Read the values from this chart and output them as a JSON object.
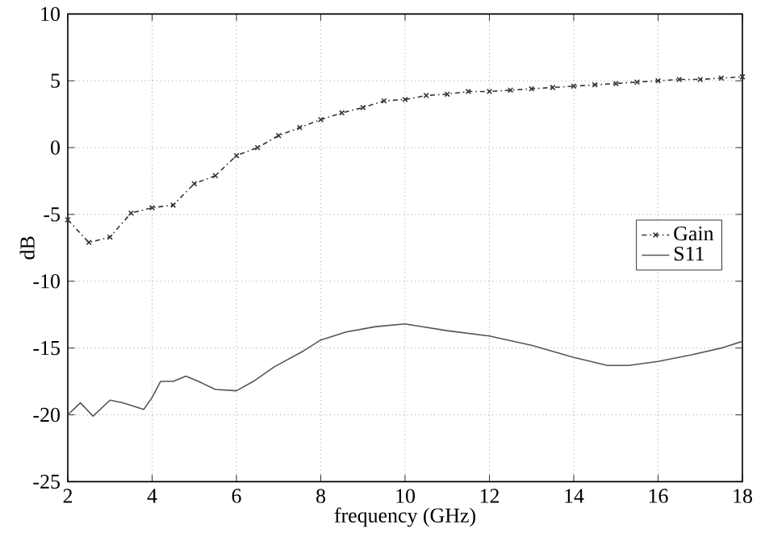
{
  "chart_data": {
    "type": "line",
    "xlabel": "frequency (GHz)",
    "ylabel": "dB",
    "xlim": [
      2,
      18
    ],
    "ylim": [
      -25,
      10
    ],
    "xticks": [
      2,
      4,
      6,
      8,
      10,
      12,
      14,
      16,
      18
    ],
    "yticks": [
      -25,
      -20,
      -15,
      -10,
      -5,
      0,
      5,
      10
    ],
    "grid": true,
    "legend": "right",
    "series": [
      {
        "name": "Gain",
        "color": "#333333",
        "marker": "cross",
        "line_style": "dashdot",
        "x": [
          2,
          2.5,
          3,
          3.5,
          4,
          4.5,
          5,
          5.5,
          6,
          6.5,
          7,
          7.5,
          8,
          8.5,
          9,
          9.5,
          10,
          10.5,
          11,
          11.5,
          12,
          12.5,
          13,
          13.5,
          14,
          14.5,
          15,
          15.5,
          16,
          16.5,
          17,
          17.5,
          18
        ],
        "values": [
          -5.4,
          -7.1,
          -6.7,
          -4.9,
          -4.5,
          -4.3,
          -2.7,
          -2.1,
          -0.6,
          0.0,
          0.9,
          1.5,
          2.1,
          2.6,
          3.0,
          3.5,
          3.6,
          3.9,
          4.0,
          4.2,
          4.2,
          4.3,
          4.4,
          4.5,
          4.6,
          4.7,
          4.8,
          4.9,
          5.0,
          5.1,
          5.1,
          5.2,
          5.3
        ]
      },
      {
        "name": "S11",
        "color": "#555555",
        "marker": "none",
        "line_style": "solid",
        "x": [
          2,
          2.3,
          2.6,
          3,
          3.3,
          3.8,
          4,
          4.2,
          4.5,
          4.8,
          5.1,
          5.5,
          6,
          6.4,
          6.9,
          7.6,
          8,
          8.6,
          9.3,
          10,
          11,
          12,
          13,
          14,
          14.8,
          15.3,
          16,
          16.8,
          17.5,
          18
        ],
        "values": [
          -20,
          -19.1,
          -20.1,
          -18.9,
          -19.1,
          -19.6,
          -18.7,
          -17.5,
          -17.5,
          -17.1,
          -17.5,
          -18.1,
          -18.2,
          -17.5,
          -16.4,
          -15.2,
          -14.4,
          -13.8,
          -13.4,
          -13.2,
          -13.7,
          -14.1,
          -14.8,
          -15.7,
          -16.3,
          -16.3,
          -16.0,
          -15.5,
          -15.0,
          -14.5
        ]
      }
    ]
  }
}
